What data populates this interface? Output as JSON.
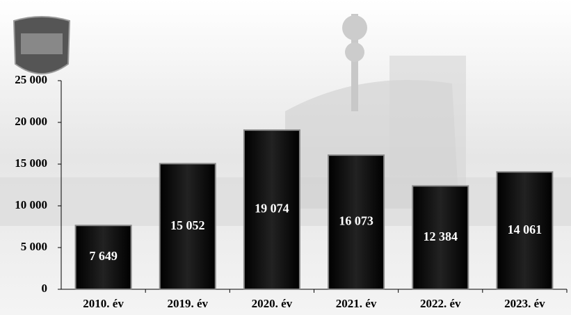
{
  "chart_data": {
    "type": "bar",
    "categories": [
      "2010. év",
      "2019. év",
      "2020. év",
      "2021. év",
      "2022. év",
      "2023. év"
    ],
    "values": [
      7649,
      15052,
      19074,
      16073,
      12384,
      14061
    ],
    "value_labels": [
      "7 649",
      "15 052",
      "19 074",
      "16 073",
      "12 384",
      "14 061"
    ],
    "color": "#1a1a1a",
    "ylim": [
      0,
      25000
    ],
    "yticks": [
      {
        "value": 0,
        "label": "0"
      },
      {
        "value": 5000,
        "label": "5 000"
      },
      {
        "value": 10000,
        "label": "10 000"
      },
      {
        "value": 15000,
        "label": "15 000"
      },
      {
        "value": 20000,
        "label": "20 000"
      },
      {
        "value": 25000,
        "label": "25 000"
      }
    ]
  }
}
